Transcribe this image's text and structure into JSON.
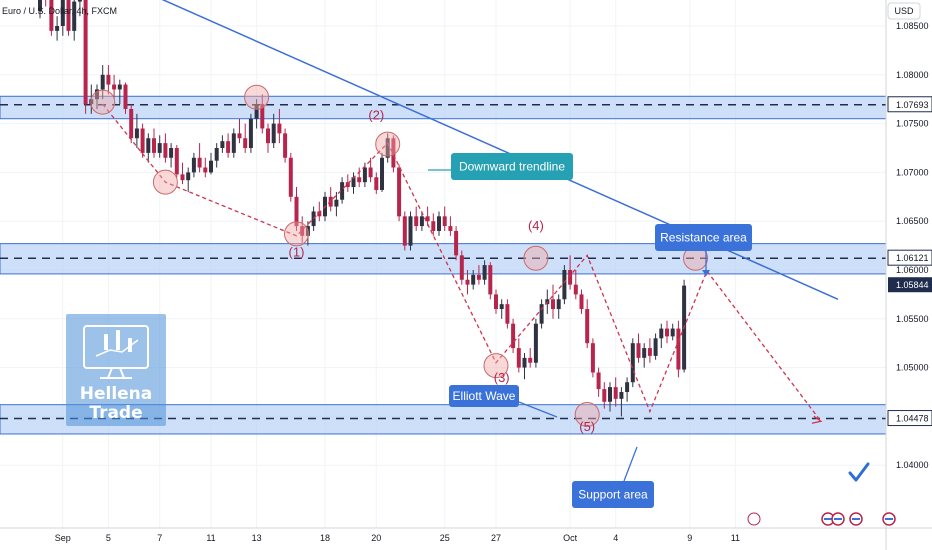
{
  "symbol": {
    "title": "Euro / U.S. Dollar, 4h, FXCM",
    "currency": "USD"
  },
  "brand": {
    "line1": "Hellena",
    "line2": "Trade"
  },
  "colors": {
    "up": "#2f3241",
    "down": "#b7254d",
    "zone": "#aecbf5",
    "trend": "#3b6fd6",
    "wave": "#d0334d",
    "callout_teal": "#26a0b3",
    "callout_blue": "#3b72d9",
    "price_box": "#1f2c4d",
    "check": "#2e6fd6"
  },
  "chart_data": {
    "type": "candlestick",
    "title": "Euro / U.S. Dollar, 4h, FXCM",
    "ylim": [
      1.0375,
      1.0892
    ],
    "y_ticks": [
      1.085,
      1.08,
      1.075,
      1.07,
      1.065,
      1.06,
      1.055,
      1.05,
      1.045,
      1.04
    ],
    "y_tick_labels": [
      "1.08500",
      "1.08000",
      "1.07500",
      "1.07000",
      "1.06500",
      "1.06000",
      "1.05500",
      "1.05000",
      "1.04500",
      "1.04000"
    ],
    "x_labels": [
      {
        "label": "Sep",
        "i": 4
      },
      {
        "label": "5",
        "i": 12
      },
      {
        "label": "7",
        "i": 21
      },
      {
        "label": "11",
        "i": 30
      },
      {
        "label": "13",
        "i": 38
      },
      {
        "label": "18",
        "i": 50
      },
      {
        "label": "20",
        "i": 59
      },
      {
        "label": "25",
        "i": 71
      },
      {
        "label": "27",
        "i": 80
      },
      {
        "label": "Oct",
        "i": 93
      },
      {
        "label": "4",
        "i": 101
      },
      {
        "label": "9",
        "i": 114
      },
      {
        "label": "11",
        "i": 122
      }
    ],
    "price_levels": [
      {
        "label": "1.07693",
        "value": 1.07693,
        "style": "zone"
      },
      {
        "label": "1.06121",
        "value": 1.06121,
        "style": "zone"
      },
      {
        "label": "1.05844",
        "value": 1.05844,
        "style": "current"
      },
      {
        "label": "1.04478",
        "value": 1.04478,
        "style": "zone"
      }
    ],
    "zones": [
      {
        "name": "upper",
        "from": 1.0755,
        "to": 1.0778
      },
      {
        "name": "resistance",
        "from": 1.0596,
        "to": 1.0627
      },
      {
        "name": "support",
        "from": 1.0432,
        "to": 1.0462
      }
    ],
    "candles": [
      [
        1.0865,
        1.09,
        1.0858,
        1.0885
      ],
      [
        1.0885,
        1.09,
        1.087,
        1.088
      ],
      [
        1.088,
        1.0895,
        1.084,
        1.0845
      ],
      [
        1.0845,
        1.086,
        1.0835,
        1.085
      ],
      [
        1.085,
        1.089,
        1.084,
        1.088
      ],
      [
        1.088,
        1.089,
        1.084,
        1.0845
      ],
      [
        1.0845,
        1.088,
        1.0835,
        1.0875
      ],
      [
        1.0875,
        1.09,
        1.086,
        1.088
      ],
      [
        1.088,
        1.0885,
        1.076,
        1.077
      ],
      [
        1.077,
        1.079,
        1.076,
        1.0775
      ],
      [
        1.0775,
        1.079,
        1.0765,
        1.0785
      ],
      [
        1.0785,
        1.081,
        1.0775,
        1.08
      ],
      [
        1.08,
        1.081,
        1.078,
        1.079
      ],
      [
        1.079,
        1.08,
        1.0775,
        1.0785
      ],
      [
        1.0785,
        1.0795,
        1.077,
        1.079
      ],
      [
        1.079,
        1.0792,
        1.076,
        1.0765
      ],
      [
        1.0765,
        1.077,
        1.073,
        1.0735
      ],
      [
        1.0735,
        1.076,
        1.0725,
        1.0745
      ],
      [
        1.0745,
        1.075,
        1.0715,
        1.072
      ],
      [
        1.072,
        1.074,
        1.071,
        1.0735
      ],
      [
        1.0735,
        1.0745,
        1.0715,
        1.072
      ],
      [
        1.072,
        1.0738,
        1.0715,
        1.073
      ],
      [
        1.073,
        1.074,
        1.071,
        1.0715
      ],
      [
        1.0715,
        1.073,
        1.0705,
        1.0725
      ],
      [
        1.0725,
        1.0728,
        1.0695,
        1.0698
      ],
      [
        1.0698,
        1.071,
        1.0688,
        1.0692
      ],
      [
        1.0692,
        1.0705,
        1.068,
        1.07
      ],
      [
        1.07,
        1.072,
        1.0695,
        1.0715
      ],
      [
        1.0715,
        1.073,
        1.07,
        1.0705
      ],
      [
        1.0705,
        1.0715,
        1.0695,
        1.07
      ],
      [
        1.07,
        1.072,
        1.0698,
        1.0712
      ],
      [
        1.0712,
        1.073,
        1.0705,
        1.0725
      ],
      [
        1.0725,
        1.0738,
        1.072,
        1.0732
      ],
      [
        1.0732,
        1.074,
        1.0715,
        1.072
      ],
      [
        1.072,
        1.0745,
        1.0715,
        1.074
      ],
      [
        1.074,
        1.0755,
        1.073,
        1.0735
      ],
      [
        1.0735,
        1.075,
        1.072,
        1.0725
      ],
      [
        1.0725,
        1.076,
        1.072,
        1.0755
      ],
      [
        1.0755,
        1.0775,
        1.0745,
        1.077
      ],
      [
        1.077,
        1.078,
        1.074,
        1.0745
      ],
      [
        1.0745,
        1.075,
        1.072,
        1.073
      ],
      [
        1.073,
        1.076,
        1.0725,
        1.075
      ],
      [
        1.075,
        1.0765,
        1.073,
        1.074
      ],
      [
        1.074,
        1.0745,
        1.071,
        1.0715
      ],
      [
        1.0715,
        1.072,
        1.067,
        1.0675
      ],
      [
        1.0675,
        1.0685,
        1.064,
        1.0645
      ],
      [
        1.0645,
        1.0655,
        1.0628,
        1.0635
      ],
      [
        1.0635,
        1.065,
        1.0625,
        1.0645
      ],
      [
        1.0645,
        1.0665,
        1.064,
        1.066
      ],
      [
        1.066,
        1.067,
        1.065,
        1.0655
      ],
      [
        1.0655,
        1.068,
        1.065,
        1.0675
      ],
      [
        1.0675,
        1.0685,
        1.066,
        1.0665
      ],
      [
        1.0665,
        1.068,
        1.0655,
        1.0672
      ],
      [
        1.0672,
        1.0695,
        1.0668,
        1.069
      ],
      [
        1.069,
        1.0698,
        1.068,
        1.0685
      ],
      [
        1.0685,
        1.07,
        1.0678,
        1.0695
      ],
      [
        1.0695,
        1.0705,
        1.0685,
        1.069
      ],
      [
        1.069,
        1.071,
        1.0685,
        1.0705
      ],
      [
        1.0705,
        1.0715,
        1.069,
        1.0695
      ],
      [
        1.0695,
        1.07,
        1.0678,
        1.0682
      ],
      [
        1.0682,
        1.072,
        1.068,
        1.0715
      ],
      [
        1.0715,
        1.074,
        1.071,
        1.0735
      ],
      [
        1.0735,
        1.0738,
        1.07,
        1.0705
      ],
      [
        1.0705,
        1.0708,
        1.065,
        1.0655
      ],
      [
        1.0655,
        1.066,
        1.062,
        1.0625
      ],
      [
        1.0625,
        1.066,
        1.062,
        1.0655
      ],
      [
        1.0655,
        1.0665,
        1.064,
        1.0645
      ],
      [
        1.0645,
        1.066,
        1.064,
        1.0655
      ],
      [
        1.0655,
        1.0665,
        1.0645,
        1.065
      ],
      [
        1.065,
        1.0658,
        1.0635,
        1.064
      ],
      [
        1.064,
        1.066,
        1.0635,
        1.0655
      ],
      [
        1.0655,
        1.0665,
        1.064,
        1.0645
      ],
      [
        1.0645,
        1.0655,
        1.0635,
        1.064
      ],
      [
        1.064,
        1.0645,
        1.061,
        1.0615
      ],
      [
        1.0615,
        1.062,
        1.0585,
        1.059
      ],
      [
        1.059,
        1.06,
        1.0575,
        1.0585
      ],
      [
        1.0585,
        1.06,
        1.058,
        1.0595
      ],
      [
        1.0595,
        1.0605,
        1.0585,
        1.059
      ],
      [
        1.059,
        1.061,
        1.0585,
        1.0605
      ],
      [
        1.0605,
        1.0608,
        1.057,
        1.0575
      ],
      [
        1.0575,
        1.058,
        1.0555,
        1.056
      ],
      [
        1.056,
        1.057,
        1.055,
        1.0565
      ],
      [
        1.0565,
        1.057,
        1.054,
        1.0545
      ],
      [
        1.0545,
        1.055,
        1.0515,
        1.052
      ],
      [
        1.052,
        1.053,
        1.0495,
        1.05
      ],
      [
        1.05,
        1.0515,
        1.0488,
        1.051
      ],
      [
        1.051,
        1.052,
        1.05,
        1.0505
      ],
      [
        1.0505,
        1.055,
        1.05,
        1.0545
      ],
      [
        1.0545,
        1.057,
        1.054,
        1.0565
      ],
      [
        1.0565,
        1.058,
        1.0555,
        1.057
      ],
      [
        1.057,
        1.0585,
        1.055,
        1.056
      ],
      [
        1.056,
        1.0575,
        1.055,
        1.057
      ],
      [
        1.057,
        1.0605,
        1.0565,
        1.06
      ],
      [
        1.06,
        1.0615,
        1.058,
        1.0585
      ],
      [
        1.0585,
        1.06,
        1.057,
        1.0575
      ],
      [
        1.0575,
        1.058,
        1.0555,
        1.056
      ],
      [
        1.056,
        1.057,
        1.052,
        1.0525
      ],
      [
        1.0525,
        1.053,
        1.049,
        1.0495
      ],
      [
        1.0495,
        1.05,
        1.047,
        1.0478
      ],
      [
        1.0478,
        1.0485,
        1.0458,
        1.0465
      ],
      [
        1.0465,
        1.0485,
        1.0455,
        1.048
      ],
      [
        1.048,
        1.049,
        1.046,
        1.0468
      ],
      [
        1.0468,
        1.048,
        1.045,
        1.0475
      ],
      [
        1.0475,
        1.049,
        1.0465,
        1.0485
      ],
      [
        1.0485,
        1.053,
        1.048,
        1.0525
      ],
      [
        1.0525,
        1.0535,
        1.0505,
        1.051
      ],
      [
        1.051,
        1.0525,
        1.05,
        1.052
      ],
      [
        1.052,
        1.053,
        1.0505,
        1.0512
      ],
      [
        1.0512,
        1.0535,
        1.0508,
        1.053
      ],
      [
        1.053,
        1.0545,
        1.052,
        1.054
      ],
      [
        1.054,
        1.0548,
        1.0525,
        1.0532
      ],
      [
        1.0532,
        1.0545,
        1.0528,
        1.054
      ],
      [
        1.054,
        1.0548,
        1.049,
        1.0498
      ],
      [
        1.0498,
        1.059,
        1.0495,
        1.0584
      ]
    ],
    "trendline": {
      "label": "Downward trendline",
      "points": [
        [
          3,
          1.0925
        ],
        [
          140,
          1.057
        ]
      ]
    },
    "wave_path": [
      [
        11,
        1.077
      ],
      [
        22,
        1.069
      ],
      [
        45,
        1.0635
      ],
      [
        61,
        1.073
      ],
      [
        80,
        1.0505
      ],
      [
        96,
        1.0615
      ],
      [
        107,
        1.0455
      ],
      [
        117,
        1.0599
      ],
      [
        137,
        1.0445
      ]
    ],
    "wave_labels": [
      {
        "label": "(1)",
        "i": 45,
        "y": 1.0614
      },
      {
        "label": "(2)",
        "i": 59,
        "y": 1.0754
      },
      {
        "label": "(3)",
        "i": 81,
        "y": 1.0485
      },
      {
        "label": "(4)",
        "i": 87,
        "y": 1.0641
      },
      {
        "label": "(5)",
        "i": 96,
        "y": 1.0435
      }
    ],
    "markers": [
      {
        "i": 11,
        "y": 1.0772
      },
      {
        "i": 38,
        "y": 1.0777
      },
      {
        "i": 22,
        "y": 1.069
      },
      {
        "i": 45,
        "y": 1.0637
      },
      {
        "i": 61,
        "y": 1.0729
      },
      {
        "i": 80,
        "y": 1.0502
      },
      {
        "i": 87,
        "y": 1.0612
      },
      {
        "i": 96,
        "y": 1.0452
      },
      {
        "i": 115,
        "y": 1.0612
      }
    ],
    "annotations": [
      {
        "name": "resistance",
        "label": "Resistance area"
      },
      {
        "name": "support",
        "label": "Support area"
      },
      {
        "name": "elliott",
        "label": "Elliott Wave"
      },
      {
        "name": "trend",
        "label": "Downward trendline"
      }
    ]
  }
}
